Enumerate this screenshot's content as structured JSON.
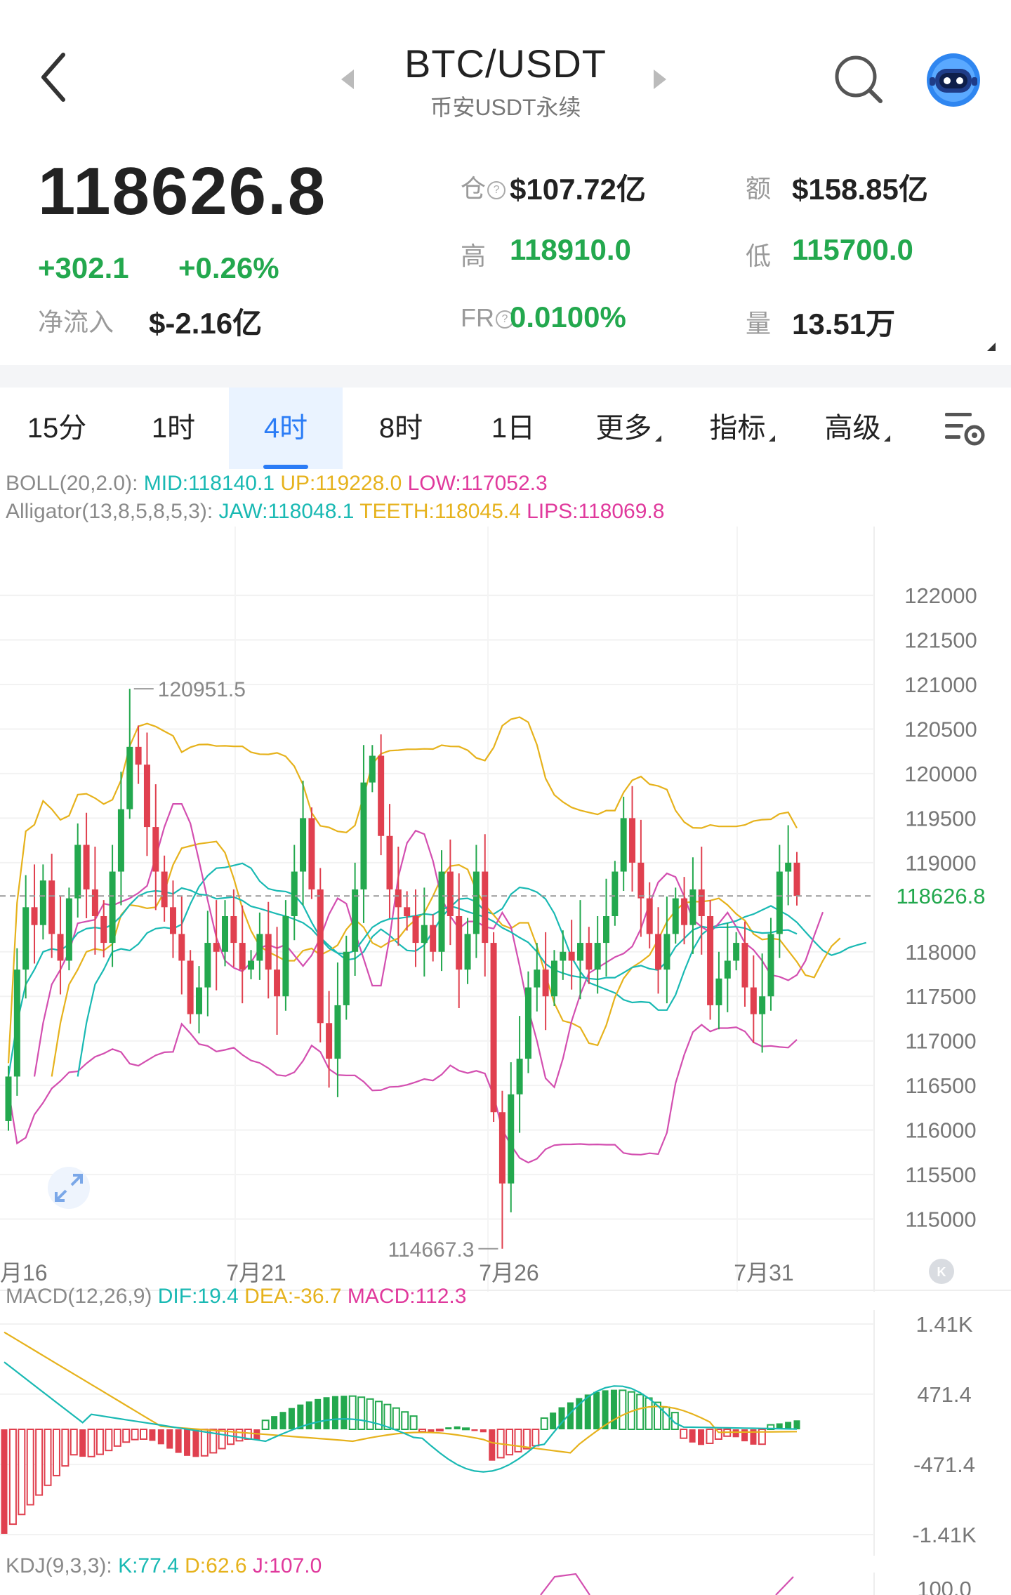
{
  "header": {
    "title": "BTC/USDT",
    "subtitle": "币安USDT永续",
    "back_icon": "chevron-left-icon",
    "search_icon": "search-icon",
    "bot_icon": "robot-icon"
  },
  "ticker": {
    "last_price": "118626.8",
    "change_abs": "+302.1",
    "change_pct": "+0.26%",
    "net_inflow_label": "净流入",
    "net_inflow_value": "$-2.16亿",
    "oi_label": "仓",
    "oi_value": "$107.72亿",
    "turnover_label": "额",
    "turnover_value": "$158.85亿",
    "high_label": "高",
    "high_value": "118910.0",
    "low_label": "低",
    "low_value": "115700.0",
    "fr_label": "FR",
    "fr_value": "0.0100%",
    "volume_label": "量",
    "volume_value": "13.51万",
    "up_color": "#23a84e",
    "down_color": "#e0404f"
  },
  "tabs": [
    {
      "label": "15分",
      "active": false,
      "dropdown": false
    },
    {
      "label": "1时",
      "active": false,
      "dropdown": false
    },
    {
      "label": "4时",
      "active": true,
      "dropdown": false
    },
    {
      "label": "8时",
      "active": false,
      "dropdown": false
    },
    {
      "label": "1日",
      "active": false,
      "dropdown": false
    },
    {
      "label": "更多",
      "active": false,
      "dropdown": true
    },
    {
      "label": "指标",
      "active": false,
      "dropdown": true
    },
    {
      "label": "高级",
      "active": false,
      "dropdown": true
    }
  ],
  "indicators": {
    "boll": {
      "name": "BOLL(20,2.0):",
      "mid": "MID:118140.1",
      "up": "UP:119228.0",
      "low": "LOW:117052.3"
    },
    "alligator": {
      "name": "Alligator(13,8,5,8,5,3):",
      "jaw": "JAW:118048.1",
      "teeth": "TEETH:118045.4",
      "lips": "LIPS:118069.8"
    },
    "macd": {
      "name": "MACD(12,26,9)",
      "dif": "DIF:19.4",
      "dea": "DEA:-36.7",
      "macd": "MACD:112.3"
    },
    "kdj": {
      "name": "KDJ(9,3,3):",
      "k": "K:77.4",
      "d": "D:62.6",
      "j": "J:107.0"
    }
  },
  "chart_data": [
    {
      "type": "candlestick",
      "interval": "4时",
      "y_ticks": [
        "122000",
        "121500",
        "121000",
        "120500",
        "120000",
        "119500",
        "119000",
        "118000",
        "117500",
        "117000",
        "116500",
        "116000",
        "115500",
        "115000"
      ],
      "ylim": [
        114500,
        122300
      ],
      "x_labels": [
        "月16",
        "7月21",
        "7月26",
        "7月31"
      ],
      "last_price_label": "118626.8",
      "last_price": 118626.8,
      "max_label": "120951.5",
      "max": 120951.5,
      "min_label": "114667.3",
      "min": 114667.3,
      "closes": [
        116600,
        117800,
        118500,
        118300,
        118800,
        118200,
        117900,
        118600,
        119200,
        118700,
        118400,
        118100,
        118900,
        119600,
        120300,
        120100,
        119400,
        118900,
        118500,
        118200,
        117900,
        117300,
        117600,
        118100,
        118000,
        118400,
        118100,
        117800,
        117900,
        118200,
        117800,
        117500,
        118400,
        118900,
        119500,
        118700,
        117200,
        116800,
        117400,
        118000,
        118700,
        119900,
        120200,
        119300,
        118700,
        118500,
        118400,
        118100,
        118300,
        118000,
        118900,
        118400,
        117800,
        118200,
        118900,
        118100,
        116200,
        115400,
        116400,
        116800,
        117600,
        117800,
        117500,
        117900,
        118000,
        117900,
        118100,
        117800,
        118100,
        118400,
        118900,
        119500,
        119000,
        118600,
        118200,
        117800,
        118200,
        118600,
        118300,
        118700,
        118400,
        117400,
        117700,
        117900,
        118100,
        117600,
        117300,
        117500,
        118200,
        118900,
        119000,
        118626.8
      ],
      "series": [
        {
          "name": "MID",
          "last": 118140.1
        },
        {
          "name": "UP",
          "last": 119228.0
        },
        {
          "name": "LOW",
          "last": 117052.3
        },
        {
          "name": "JAW",
          "last": 118048.1
        },
        {
          "name": "TEETH",
          "last": 118045.4
        },
        {
          "name": "LIPS",
          "last": 118069.8
        }
      ]
    },
    {
      "type": "bar",
      "name": "MACD(12,26,9)",
      "y_ticks": [
        "1.41K",
        "471.4",
        "-471.4",
        "-1.41K"
      ],
      "ylim": [
        -1410,
        1410
      ],
      "dif_last": 19.4,
      "dea_last": -36.7,
      "macd_last": 112.3
    },
    {
      "type": "line",
      "name": "KDJ(9,3,3)",
      "y_ticks": [
        "100.0"
      ],
      "k_last": 77.4,
      "d_last": 62.6,
      "j_last": 107.0
    }
  ]
}
